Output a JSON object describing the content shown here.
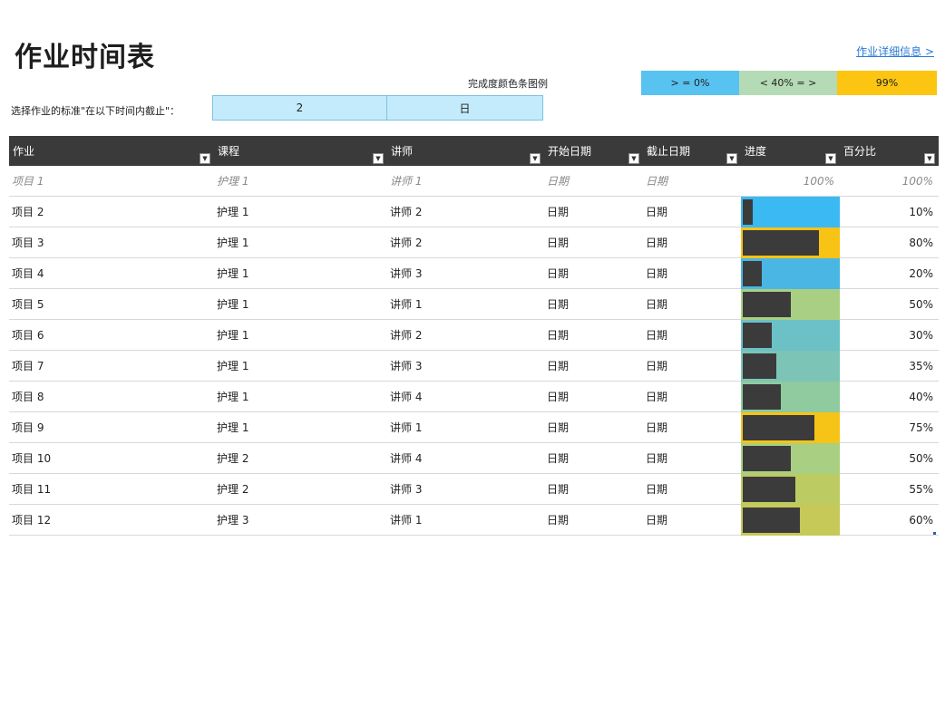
{
  "title": "作业时间表",
  "details_link": "作业详细信息 >",
  "legend": {
    "label": "完成度颜色条图例",
    "items": [
      {
        "label": "> = 0%",
        "color": "#58c3f0"
      },
      {
        "label": "< 40% = >",
        "color": "#b4dbb5"
      },
      {
        "label": "99%",
        "color": "#fcc512"
      }
    ]
  },
  "filter": {
    "label": "选择作业的标准\"在以下时间内截止\"：",
    "value": "2",
    "unit": "日"
  },
  "columns": [
    "作业",
    "课程",
    "讲师",
    "开始日期",
    "截止日期",
    "进度",
    "百分比"
  ],
  "header_row": {
    "assignment": "项目 1",
    "course": "护理 1",
    "instructor": "讲师 1",
    "start": "日期",
    "due": "日期",
    "progress": "100%",
    "percent": "100%"
  },
  "rows": [
    {
      "assignment": "项目 2",
      "course": "护理 1",
      "instructor": "讲师 2",
      "start": "日期",
      "due": "日期",
      "progress": 0.1,
      "percent": "10%",
      "bar_color": "#3bb9f2"
    },
    {
      "assignment": "项目 3",
      "course": "护理 1",
      "instructor": "讲师 2",
      "start": "日期",
      "due": "日期",
      "progress": 0.8,
      "percent": "80%",
      "bar_color": "#f7c315"
    },
    {
      "assignment": "项目 4",
      "course": "护理 1",
      "instructor": "讲师 3",
      "start": "日期",
      "due": "日期",
      "progress": 0.2,
      "percent": "20%",
      "bar_color": "#4ab6e4"
    },
    {
      "assignment": "项目 5",
      "course": "护理 1",
      "instructor": "讲师 1",
      "start": "日期",
      "due": "日期",
      "progress": 0.5,
      "percent": "50%",
      "bar_color": "#a9cf83"
    },
    {
      "assignment": "项目 6",
      "course": "护理 1",
      "instructor": "讲师 2",
      "start": "日期",
      "due": "日期",
      "progress": 0.3,
      "percent": "30%",
      "bar_color": "#6cc1c7"
    },
    {
      "assignment": "项目 7",
      "course": "护理 1",
      "instructor": "讲师 3",
      "start": "日期",
      "due": "日期",
      "progress": 0.35,
      "percent": "35%",
      "bar_color": "#7cc4b6"
    },
    {
      "assignment": "项目 8",
      "course": "护理 1",
      "instructor": "讲师 4",
      "start": "日期",
      "due": "日期",
      "progress": 0.4,
      "percent": "40%",
      "bar_color": "#8fcb9e"
    },
    {
      "assignment": "项目 9",
      "course": "护理 1",
      "instructor": "讲师 1",
      "start": "日期",
      "due": "日期",
      "progress": 0.75,
      "percent": "75%",
      "bar_color": "#f6c416"
    },
    {
      "assignment": "项目 10",
      "course": "护理 2",
      "instructor": "讲师 4",
      "start": "日期",
      "due": "日期",
      "progress": 0.5,
      "percent": "50%",
      "bar_color": "#a9cf83"
    },
    {
      "assignment": "项目 11",
      "course": "护理 2",
      "instructor": "讲师 3",
      "start": "日期",
      "due": "日期",
      "progress": 0.55,
      "percent": "55%",
      "bar_color": "#bccc62"
    },
    {
      "assignment": "项目 12",
      "course": "护理 3",
      "instructor": "讲师 1",
      "start": "日期",
      "due": "日期",
      "progress": 0.6,
      "percent": "60%",
      "bar_color": "#c6c858"
    }
  ]
}
